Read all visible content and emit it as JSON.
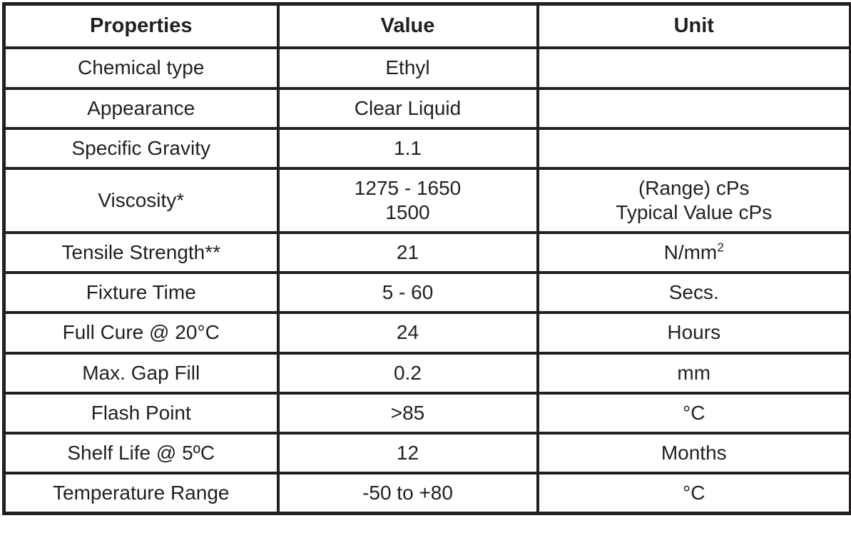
{
  "table": {
    "columns": [
      {
        "label": "Properties"
      },
      {
        "label": "Value"
      },
      {
        "label": "Unit"
      }
    ],
    "rows": [
      {
        "property": "Chemical type",
        "value": [
          "Ethyl"
        ],
        "unit": []
      },
      {
        "property": "Appearance",
        "value": [
          "Clear Liquid"
        ],
        "unit": []
      },
      {
        "property": "Specific Gravity",
        "value": [
          "1.1"
        ],
        "unit": []
      },
      {
        "property": "Viscosity*",
        "value": [
          "1275 - 1650",
          "1500"
        ],
        "unit": [
          {
            "t": "(Range) cPs"
          },
          {
            "t": "Typical Value cPs"
          }
        ]
      },
      {
        "property": "Tensile Strength**",
        "value": [
          "21"
        ],
        "unit": [
          {
            "t": "N/mm",
            "sup": "2"
          }
        ]
      },
      {
        "property": "Fixture Time",
        "value": [
          "5 - 60"
        ],
        "unit": [
          {
            "t": "Secs."
          }
        ]
      },
      {
        "property": "Full Cure @ 20°C",
        "value": [
          "24"
        ],
        "unit": [
          {
            "t": "Hours"
          }
        ]
      },
      {
        "property": "Max. Gap Fill",
        "value": [
          "0.2"
        ],
        "unit": [
          {
            "t": "mm"
          }
        ]
      },
      {
        "property": "Flash Point",
        "value": [
          ">85"
        ],
        "unit": [
          {
            "t": "°C"
          }
        ]
      },
      {
        "property": "Shelf Life @ 5ºC",
        "value": [
          "12"
        ],
        "unit": [
          {
            "t": "Months"
          }
        ]
      },
      {
        "property": "Temperature Range",
        "value": [
          "-50 to +80"
        ],
        "unit": [
          {
            "t": "°C"
          }
        ]
      }
    ]
  },
  "colors": {
    "text": "#231f20",
    "border": "#231f20",
    "background": "#ffffff"
  }
}
